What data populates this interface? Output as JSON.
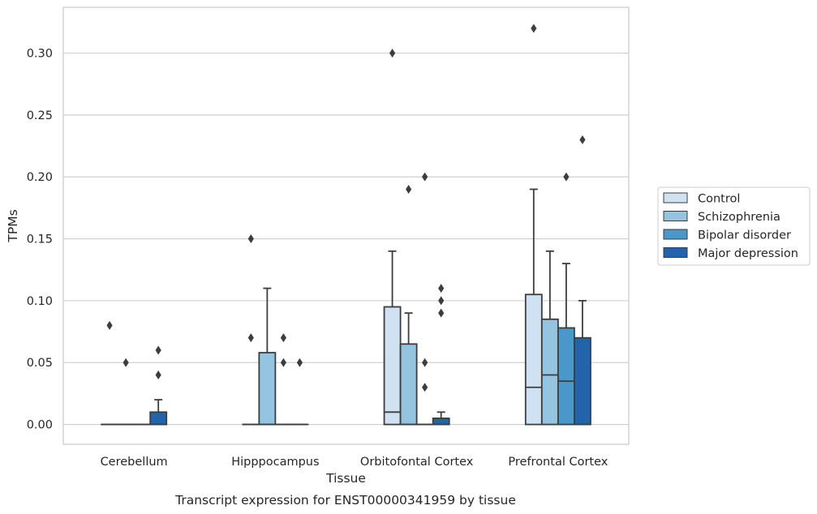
{
  "chart_data": {
    "type": "boxplot",
    "xlabel": "Tissue",
    "ylabel": "TPMs",
    "caption": "Transcript expression for ENST00000341959 by tissue",
    "ylim": [
      -0.016,
      0.337
    ],
    "yticks": [
      "0.00",
      "0.05",
      "0.10",
      "0.15",
      "0.20",
      "0.25",
      "0.30"
    ],
    "ytick_values": [
      0,
      0.05,
      0.1,
      0.15,
      0.2,
      0.25,
      0.3
    ],
    "grid": true,
    "legend_position": "right",
    "categories": [
      "Cerebellum",
      "Hipppocampus",
      "Orbitofontal Cortex",
      "Prefrontal Cortex"
    ],
    "series": [
      {
        "name": "Control",
        "color": "#d0e1f2",
        "boxes": [
          {
            "q1": 0,
            "median": 0,
            "q3": 0,
            "whislo": 0,
            "whishi": 0,
            "fliers": [
              0.08
            ]
          },
          {
            "q1": 0,
            "median": 0,
            "q3": 0,
            "whislo": 0,
            "whishi": 0,
            "fliers": [
              0.15,
              0.07
            ]
          },
          {
            "q1": 0,
            "median": 0.01,
            "q3": 0.095,
            "whislo": 0,
            "whishi": 0.14,
            "fliers": [
              0.3
            ]
          },
          {
            "q1": 0,
            "median": 0.03,
            "q3": 0.105,
            "whislo": 0,
            "whishi": 0.19,
            "fliers": [
              0.32
            ]
          }
        ]
      },
      {
        "name": "Schizophrenia",
        "color": "#94c4df",
        "boxes": [
          {
            "q1": 0,
            "median": 0,
            "q3": 0,
            "whislo": 0,
            "whishi": 0,
            "fliers": [
              0.05
            ]
          },
          {
            "q1": 0,
            "median": 0,
            "q3": 0.058,
            "whislo": 0,
            "whishi": 0.11,
            "fliers": []
          },
          {
            "q1": 0,
            "median": 0,
            "q3": 0.065,
            "whislo": 0,
            "whishi": 0.09,
            "fliers": [
              0.19
            ]
          },
          {
            "q1": 0,
            "median": 0.04,
            "q3": 0.085,
            "whislo": 0,
            "whishi": 0.14,
            "fliers": []
          }
        ]
      },
      {
        "name": "Bipolar disorder",
        "color": "#4a98c9",
        "boxes": [
          {
            "q1": 0,
            "median": 0,
            "q3": 0,
            "whislo": 0,
            "whishi": 0,
            "fliers": []
          },
          {
            "q1": 0,
            "median": 0,
            "q3": 0,
            "whislo": 0,
            "whishi": 0,
            "fliers": [
              0.07,
              0.05
            ]
          },
          {
            "q1": 0,
            "median": 0,
            "q3": 0,
            "whislo": 0,
            "whishi": 0,
            "fliers": [
              0.2,
              0.05,
              0.03
            ]
          },
          {
            "q1": 0,
            "median": 0.035,
            "q3": 0.078,
            "whislo": 0,
            "whishi": 0.13,
            "fliers": [
              0.2
            ]
          }
        ]
      },
      {
        "name": "Major depression",
        "color": "#2164ab",
        "boxes": [
          {
            "q1": 0,
            "median": 0,
            "q3": 0.01,
            "whislo": 0,
            "whishi": 0.02,
            "fliers": [
              0.06,
              0.04
            ]
          },
          {
            "q1": 0,
            "median": 0,
            "q3": 0,
            "whislo": 0,
            "whishi": 0,
            "fliers": [
              0.05
            ]
          },
          {
            "q1": 0,
            "median": 0,
            "q3": 0.005,
            "whislo": 0,
            "whishi": 0.01,
            "fliers": [
              0.11,
              0.1,
              0.09
            ]
          },
          {
            "q1": 0,
            "median": 0,
            "q3": 0.07,
            "whislo": 0,
            "whishi": 0.1,
            "fliers": [
              0.23
            ]
          }
        ]
      }
    ]
  }
}
